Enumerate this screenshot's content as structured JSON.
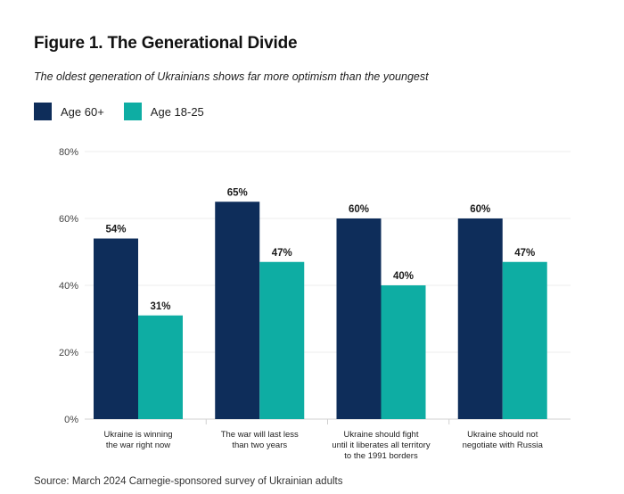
{
  "title": "Figure 1. The Generational Divide",
  "subtitle": "The oldest generation of Ukrainians shows far more optimism than the youngest",
  "legend": [
    {
      "label": "Age 60+",
      "color": "#0e2d5a"
    },
    {
      "label": "Age 18-25",
      "color": "#0eada3"
    }
  ],
  "source": "Source: March 2024 Carnegie-sponsored survey of Ukrainian adults",
  "chart_data": {
    "type": "bar",
    "title": "Figure 1. The Generational Divide",
    "subtitle": "The oldest generation of Ukrainians shows far more optimism than the youngest",
    "categories": [
      [
        "Ukraine is winning",
        "the war right now"
      ],
      [
        "The war will last less",
        "than two years"
      ],
      [
        "Ukraine should fight",
        "until it liberates all territory",
        "to the 1991 borders"
      ],
      [
        "Ukraine should not",
        "negotiate with Russia"
      ]
    ],
    "series": [
      {
        "name": "Age 60+",
        "color": "#0e2d5a",
        "values": [
          54,
          65,
          60,
          60
        ],
        "labels": [
          "54%",
          "65%",
          "60%",
          "60%"
        ]
      },
      {
        "name": "Age 18-25",
        "color": "#0eada3",
        "values": [
          31,
          47,
          40,
          47
        ],
        "labels": [
          "31%",
          "47%",
          "40%",
          "47%"
        ]
      }
    ],
    "yticks": [
      "0%",
      "20%",
      "40%",
      "60%",
      "80%"
    ],
    "ylim": [
      0,
      80
    ],
    "grid": true,
    "legend_position": "top-left"
  }
}
